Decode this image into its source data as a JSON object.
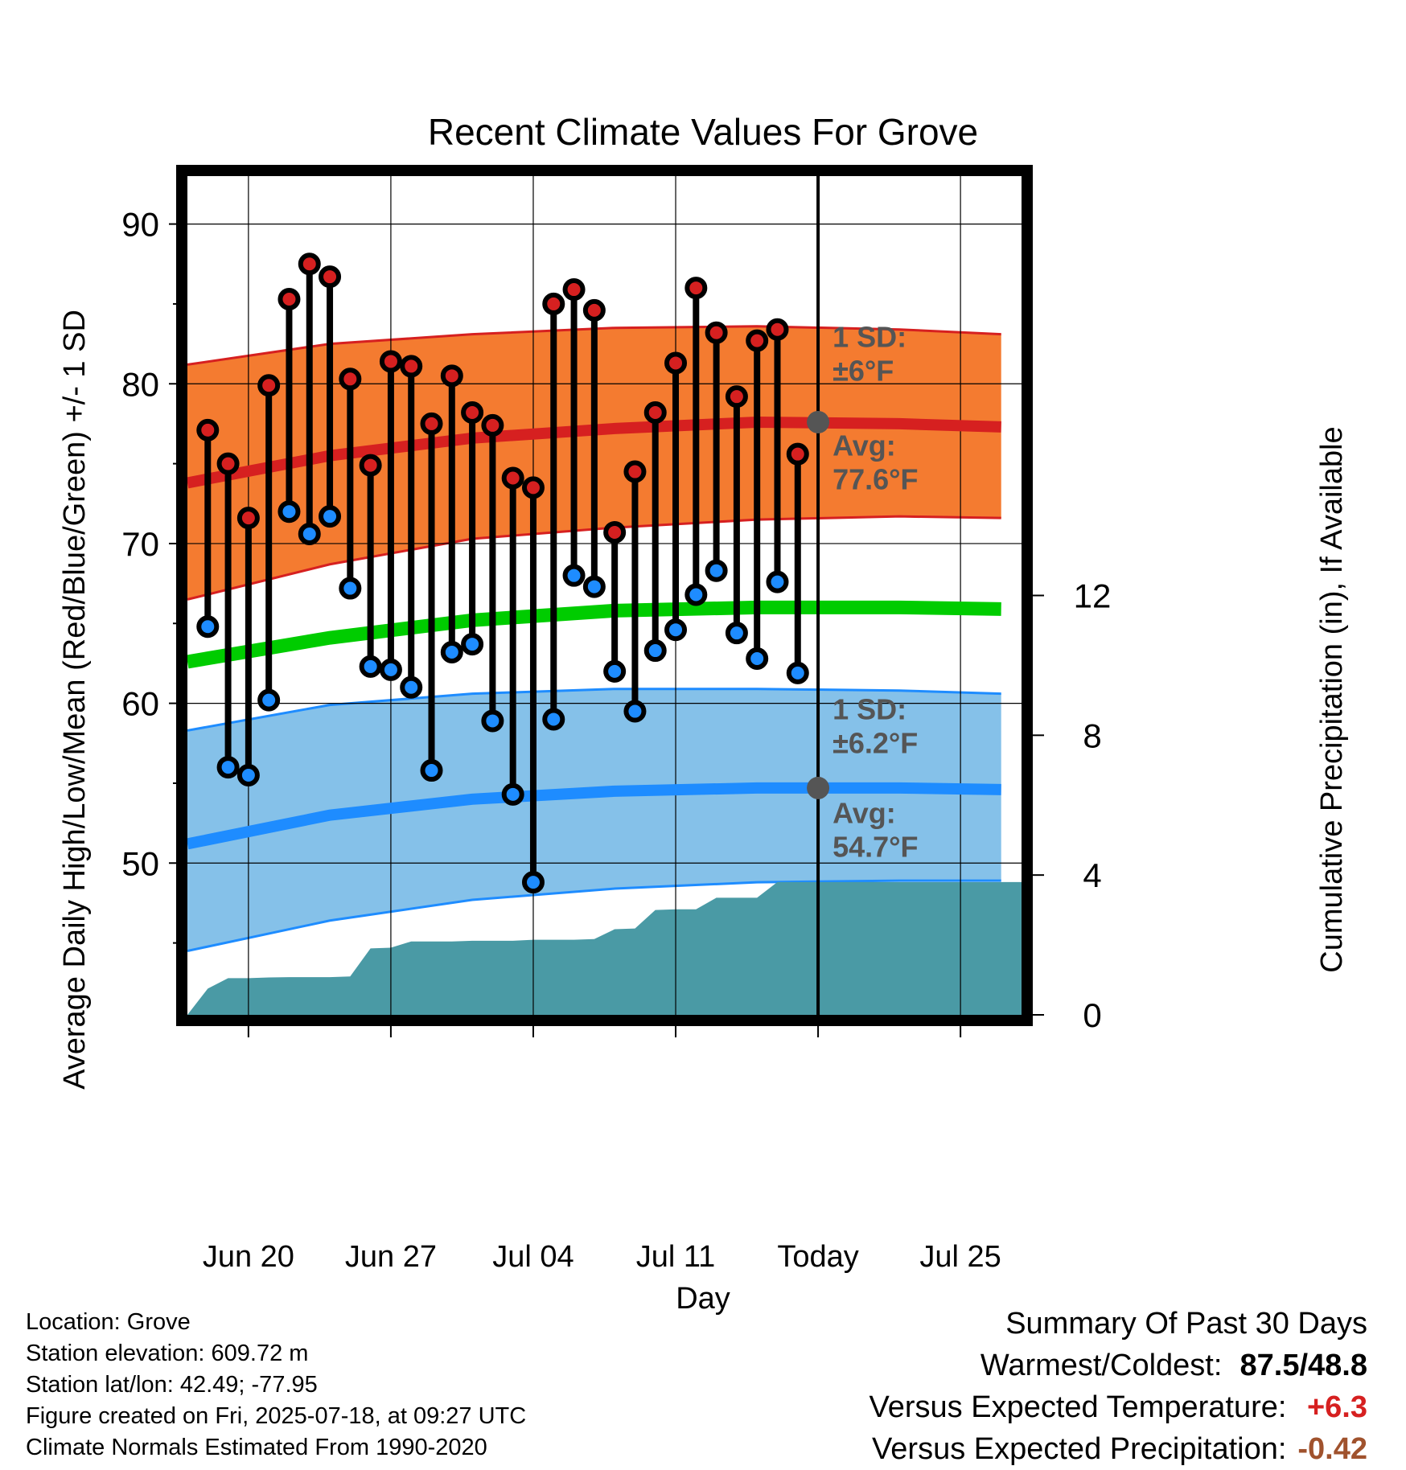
{
  "colors": {
    "high_band": "#f47b30",
    "high_band_edge": "#d62020",
    "high_avg": "#d62020",
    "low_band": "#85c1e9",
    "low_band_edge": "#1e8cff",
    "low_avg": "#1e8cff",
    "mean_line": "#00cc00",
    "precip_fill": "#4a9aa5",
    "high_marker": "#d62020",
    "low_marker": "#1e8cff",
    "annotation_text": "#555555",
    "temp_departure": "#d62020",
    "precip_departure": "#a0522d"
  },
  "chart_data": {
    "type": "line",
    "title": "Recent Climate Values For Grove",
    "xlabel": "Day",
    "ylabel": "Average Daily High/Low/Mean (Red/Blue/Green) +/- 1 SD",
    "y2label": "Cumulative Precipitation (in), If Available",
    "xlim": [
      "2025-06-17",
      "2025-07-28"
    ],
    "ylim": [
      40.5,
      93
    ],
    "y2lim": [
      0,
      24
    ],
    "x_tick_dates": [
      "2025-06-20",
      "2025-06-27",
      "2025-07-04",
      "2025-07-11",
      "2025-07-18",
      "2025-07-25"
    ],
    "x_tick_labels": [
      "Jun 20",
      "Jun 27",
      "Jul 04",
      "Jul 11",
      "Today",
      "Jul 25"
    ],
    "y_ticks": [
      50,
      60,
      70,
      80,
      90
    ],
    "y_tick_labels": [
      "50",
      "60",
      "70",
      "80",
      "90"
    ],
    "y2_ticks": [
      0,
      4,
      8,
      12
    ],
    "y2_tick_labels": [
      "0",
      "4",
      "8",
      "12"
    ],
    "grid": true,
    "today": "2025-07-18",
    "period_label": [
      "30",
      "Days"
    ],
    "normals": {
      "dates": [
        "2025-06-17",
        "2025-06-24",
        "2025-07-01",
        "2025-07-08",
        "2025-07-15",
        "2025-07-22",
        "2025-07-27"
      ],
      "avg_high": [
        73.8,
        75.5,
        76.6,
        77.2,
        77.6,
        77.5,
        77.3
      ],
      "high_plus_sd": [
        81.2,
        82.5,
        83.1,
        83.5,
        83.6,
        83.4,
        83.1
      ],
      "high_minus_sd": [
        66.5,
        68.7,
        70.3,
        71.0,
        71.5,
        71.7,
        71.6
      ],
      "avg_mean": [
        62.6,
        64.1,
        65.2,
        65.8,
        66.0,
        66.0,
        65.9
      ],
      "avg_low": [
        51.2,
        53.0,
        54.0,
        54.5,
        54.7,
        54.7,
        54.6
      ],
      "low_plus_sd": [
        58.3,
        59.9,
        60.6,
        60.9,
        60.9,
        60.8,
        60.6
      ],
      "low_minus_sd": [
        44.5,
        46.4,
        47.7,
        48.4,
        48.8,
        48.9,
        48.9
      ]
    },
    "series": [
      {
        "name": "High",
        "dates": [
          "2025-06-18",
          "2025-06-19",
          "2025-06-20",
          "2025-06-21",
          "2025-06-22",
          "2025-06-23",
          "2025-06-24",
          "2025-06-25",
          "2025-06-26",
          "2025-06-27",
          "2025-06-28",
          "2025-06-29",
          "2025-06-30",
          "2025-07-01",
          "2025-07-02",
          "2025-07-03",
          "2025-07-04",
          "2025-07-05",
          "2025-07-06",
          "2025-07-07",
          "2025-07-08",
          "2025-07-09",
          "2025-07-10",
          "2025-07-11",
          "2025-07-12",
          "2025-07-13",
          "2025-07-14",
          "2025-07-15",
          "2025-07-16",
          "2025-07-17"
        ],
        "values": [
          77.1,
          75.0,
          71.6,
          79.9,
          85.3,
          87.5,
          86.7,
          80.3,
          74.9,
          81.4,
          81.1,
          77.5,
          80.5,
          78.2,
          77.4,
          74.1,
          73.5,
          85.0,
          85.9,
          84.6,
          70.7,
          74.5,
          78.2,
          81.3,
          86.0,
          83.2,
          79.2,
          82.7,
          83.4,
          75.6
        ]
      },
      {
        "name": "Low",
        "dates": [
          "2025-06-18",
          "2025-06-19",
          "2025-06-20",
          "2025-06-21",
          "2025-06-22",
          "2025-06-23",
          "2025-06-24",
          "2025-06-25",
          "2025-06-26",
          "2025-06-27",
          "2025-06-28",
          "2025-06-29",
          "2025-06-30",
          "2025-07-01",
          "2025-07-02",
          "2025-07-03",
          "2025-07-04",
          "2025-07-05",
          "2025-07-06",
          "2025-07-07",
          "2025-07-08",
          "2025-07-09",
          "2025-07-10",
          "2025-07-11",
          "2025-07-12",
          "2025-07-13",
          "2025-07-14",
          "2025-07-15",
          "2025-07-16",
          "2025-07-17"
        ],
        "values": [
          64.8,
          56.0,
          55.5,
          60.2,
          72.0,
          70.6,
          71.7,
          67.2,
          62.3,
          62.1,
          61.0,
          55.8,
          63.2,
          63.7,
          58.9,
          54.3,
          48.8,
          59.0,
          68.0,
          67.3,
          62.0,
          59.5,
          63.3,
          64.6,
          66.8,
          68.3,
          64.4,
          62.8,
          67.6,
          61.9
        ]
      },
      {
        "name": "Cumulative Precipitation",
        "dates": [
          "2025-06-17",
          "2025-06-18",
          "2025-06-19",
          "2025-06-20",
          "2025-06-21",
          "2025-06-22",
          "2025-06-23",
          "2025-06-24",
          "2025-06-25",
          "2025-06-26",
          "2025-06-27",
          "2025-06-28",
          "2025-06-29",
          "2025-06-30",
          "2025-07-01",
          "2025-07-02",
          "2025-07-03",
          "2025-07-04",
          "2025-07-05",
          "2025-07-06",
          "2025-07-07",
          "2025-07-08",
          "2025-07-09",
          "2025-07-10",
          "2025-07-11",
          "2025-07-12",
          "2025-07-13",
          "2025-07-14",
          "2025-07-15",
          "2025-07-16",
          "2025-07-17",
          "2025-07-18",
          "2025-07-28"
        ],
        "values": [
          0.0,
          0.75,
          1.05,
          1.05,
          1.07,
          1.08,
          1.08,
          1.08,
          1.1,
          1.9,
          1.92,
          2.1,
          2.1,
          2.1,
          2.12,
          2.12,
          2.12,
          2.15,
          2.15,
          2.15,
          2.17,
          2.45,
          2.47,
          3.0,
          3.02,
          3.02,
          3.35,
          3.35,
          3.35,
          3.8,
          3.8,
          3.8,
          3.8
        ]
      }
    ],
    "annotations": {
      "high_sd_label": [
        "1 SD:",
        "±6°F"
      ],
      "high_avg_label": [
        "Avg:",
        "77.6°F"
      ],
      "low_sd_label": [
        "1 SD:",
        "±6.2°F"
      ],
      "low_avg_label": [
        "Avg:",
        "54.7°F"
      ],
      "high_avg_today": 77.6,
      "low_avg_today": 54.7
    }
  },
  "info": {
    "location": "Location: Grove",
    "elevation": "Station elevation: 609.72 m",
    "latlon": "Station lat/lon: 42.49; -77.95",
    "created": "Figure created on Fri, 2025-07-18, at 09:27 UTC",
    "normals": "Climate Normals Estimated From 1990-2020"
  },
  "summary": {
    "title": "Summary Of Past 30 Days",
    "warm_cold_label": "Warmest/Coldest:",
    "warm_cold_value": "87.5/48.8",
    "temp_label": "Versus Expected Temperature:",
    "temp_value": "+6.3",
    "precip_label": "Versus Expected Precipitation:",
    "precip_value": "-0.42"
  }
}
